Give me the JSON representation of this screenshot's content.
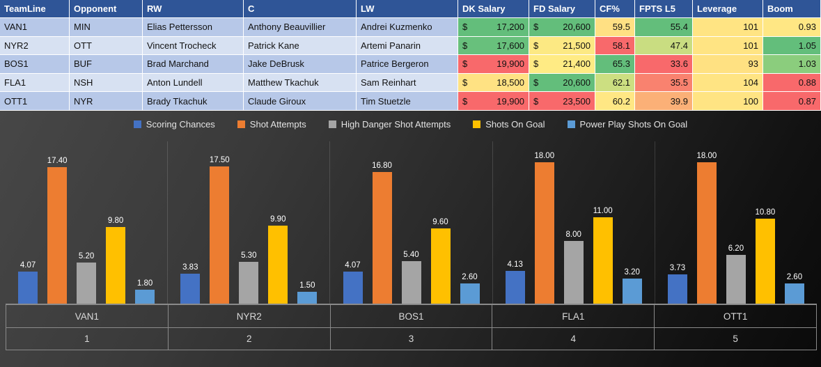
{
  "table": {
    "currency_symbol": "$",
    "headers": [
      "TeamLine",
      "Opponent",
      "RW",
      "C",
      "LW",
      "DK Salary",
      "FD Salary",
      "CF%",
      "FPTS L5",
      "Leverage",
      "Boom"
    ],
    "rows": [
      {
        "team": "VAN1",
        "opp": "MIN",
        "rw": "Elias Pettersson",
        "c": "Anthony Beauvillier",
        "lw": "Andrei Kuzmenko",
        "dk": "17,200",
        "fd": "20,600",
        "cf": "59.5",
        "fpts": "55.4",
        "lev": "101",
        "boom": "0.93",
        "colors": {
          "dk": "#63BE7B",
          "fd": "#63BE7B",
          "cf": "#FFE083",
          "fpts": "#63BE7B",
          "lev": "#FFE483",
          "boom": "#FFE784"
        }
      },
      {
        "team": "NYR2",
        "opp": "OTT",
        "rw": "Vincent Trocheck",
        "c": "Patrick Kane",
        "lw": "Artemi Panarin",
        "dk": "17,600",
        "fd": "21,500",
        "cf": "58.1",
        "fpts": "47.4",
        "lev": "101",
        "boom": "1.05",
        "colors": {
          "dk": "#68C07C",
          "fd": "#FCE983",
          "cf": "#F8696B",
          "fpts": "#C9DD81",
          "lev": "#FFE483",
          "boom": "#63BE7B"
        }
      },
      {
        "team": "BOS1",
        "opp": "BUF",
        "rw": "Brad Marchand",
        "c": "Jake DeBrusk",
        "lw": "Patrice Bergeron",
        "dk": "19,900",
        "fd": "21,400",
        "cf": "65.3",
        "fpts": "33.6",
        "lev": "93",
        "boom": "1.03",
        "colors": {
          "dk": "#F8696B",
          "fd": "#FFEB84",
          "cf": "#63BE7B",
          "fpts": "#F8696B",
          "lev": "#FFE182",
          "boom": "#8BCD7D"
        }
      },
      {
        "team": "FLA1",
        "opp": "NSH",
        "rw": "Anton Lundell",
        "c": "Matthew Tkachuk",
        "lw": "Sam Reinhart",
        "dk": "18,500",
        "fd": "20,600",
        "cf": "62.1",
        "fpts": "35.5",
        "lev": "104",
        "boom": "0.88",
        "colors": {
          "dk": "#FFE283",
          "fd": "#63BE7B",
          "cf": "#CCDF81",
          "fpts": "#F9826F",
          "lev": "#FFE483",
          "boom": "#F8696B"
        }
      },
      {
        "team": "OTT1",
        "opp": "NYR",
        "rw": "Brady Tkachuk",
        "c": "Claude Giroux",
        "lw": "Tim Stuetzle",
        "dk": "19,900",
        "fd": "23,500",
        "cf": "60.2",
        "fpts": "39.9",
        "lev": "100",
        "boom": "0.87",
        "colors": {
          "dk": "#F8696B",
          "fd": "#F8696B",
          "cf": "#FFE784",
          "fpts": "#FBB077",
          "lev": "#FFE483",
          "boom": "#F8696B"
        }
      }
    ]
  },
  "chart_data": {
    "type": "bar",
    "title": "",
    "categories": [
      "VAN1",
      "NYR2",
      "BOS1",
      "FLA1",
      "OTT1"
    ],
    "category_numbers": [
      "1",
      "2",
      "3",
      "4",
      "5"
    ],
    "series": [
      {
        "name": "Scoring Chances",
        "color": "#4472C4",
        "values": [
          4.07,
          3.83,
          4.07,
          4.13,
          3.73
        ]
      },
      {
        "name": "Shot Attempts",
        "color": "#ED7D31",
        "values": [
          17.4,
          17.5,
          16.8,
          18.0,
          18.0
        ]
      },
      {
        "name": "High Danger Shot Attempts",
        "color": "#A5A5A5",
        "values": [
          5.2,
          5.3,
          5.4,
          8.0,
          6.2
        ]
      },
      {
        "name": "Shots On Goal",
        "color": "#FFC000",
        "values": [
          9.8,
          9.9,
          9.6,
          11.0,
          10.8
        ]
      },
      {
        "name": "Power Play Shots On Goal",
        "color": "#5B9BD5",
        "values": [
          1.8,
          1.5,
          2.6,
          3.2,
          2.6
        ]
      }
    ],
    "ylim": [
      0,
      18
    ],
    "grid": false,
    "legend_position": "top",
    "data_labels": true,
    "background": "dark-gradient"
  }
}
